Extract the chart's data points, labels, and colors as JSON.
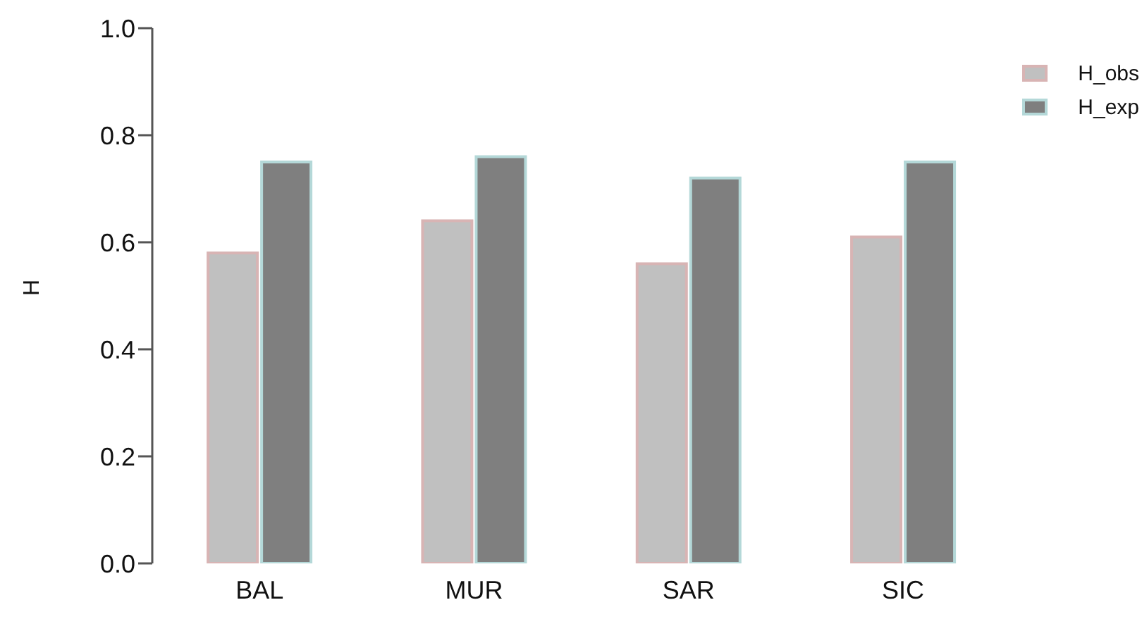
{
  "chart_data": {
    "type": "bar",
    "ylabel": "H",
    "categories": [
      "BAL",
      "MUR",
      "SAR",
      "SIC"
    ],
    "series": [
      {
        "name": "H_obs",
        "color": "#c0c0c0",
        "values": [
          0.58,
          0.64,
          0.56,
          0.61
        ]
      },
      {
        "name": "H_exp",
        "color": "#7f7f7f",
        "values": [
          0.75,
          0.76,
          0.72,
          0.75
        ]
      }
    ],
    "ylim": [
      0,
      1
    ],
    "yticks": [
      {
        "value": 0,
        "label": "0.0"
      },
      0.2,
      0.4,
      0.6,
      0.8,
      {
        "value": 1,
        "label": "1.0"
      }
    ],
    "grid": false,
    "legend": "top right"
  }
}
